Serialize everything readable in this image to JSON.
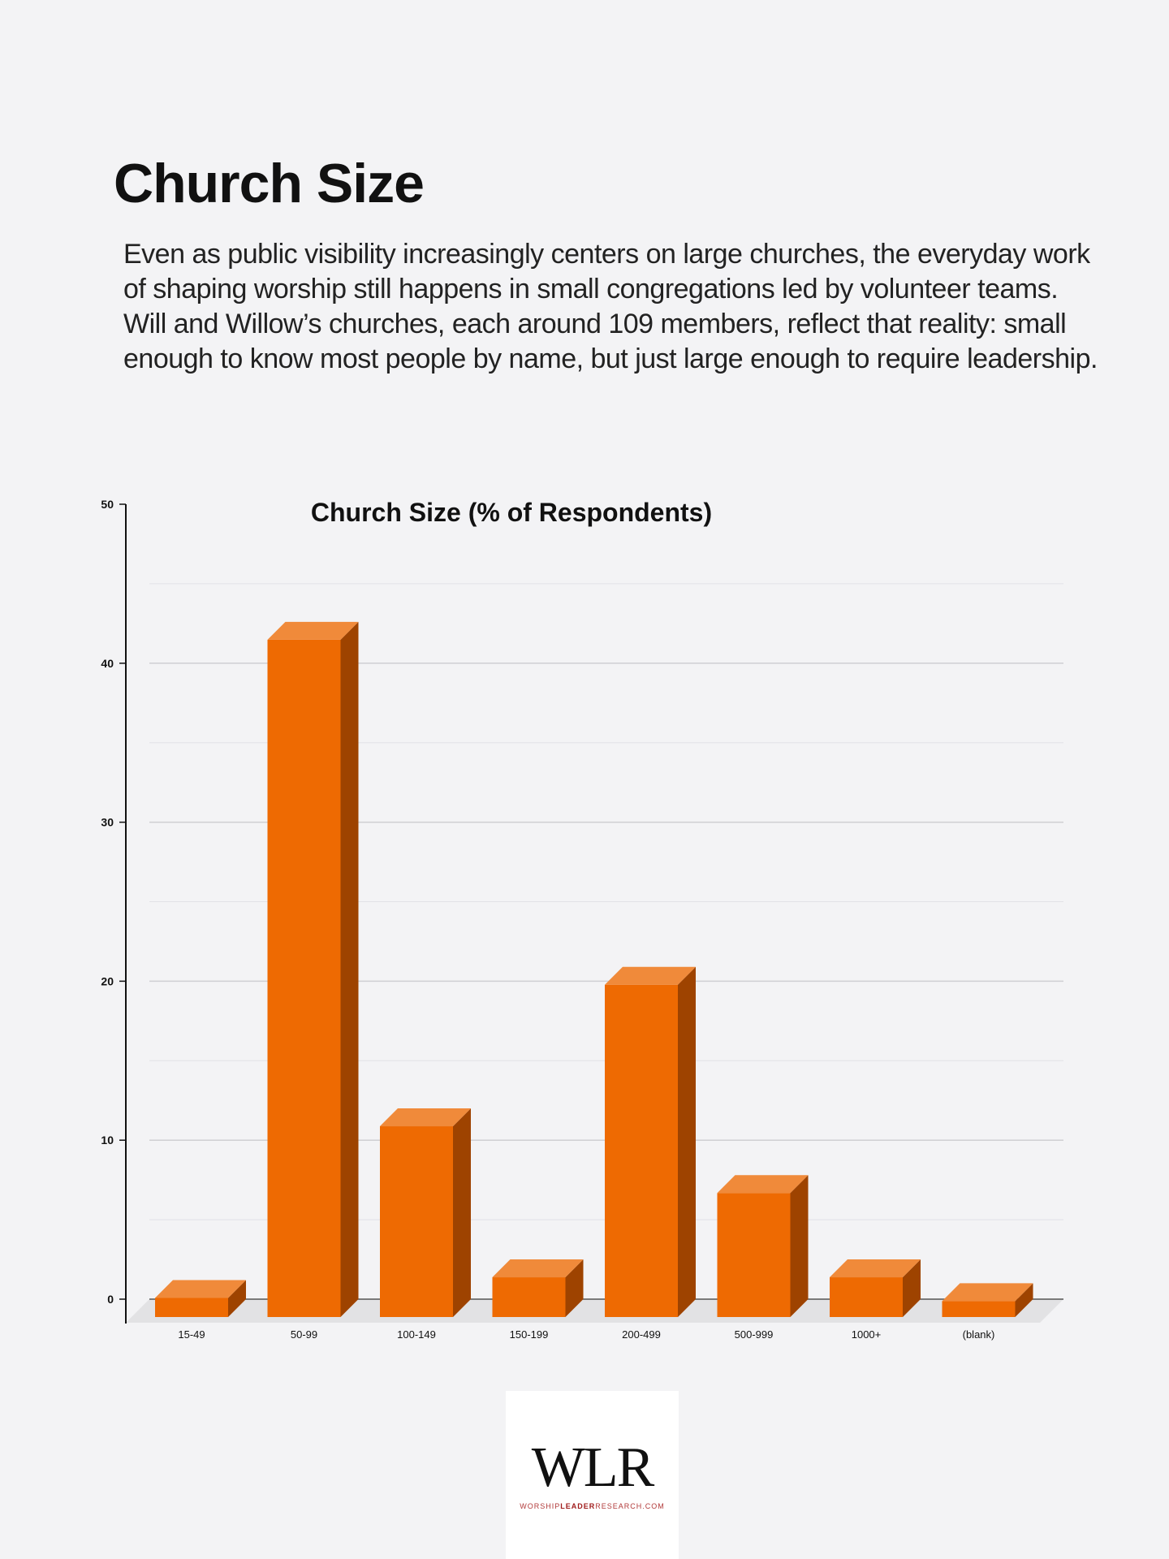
{
  "header": {
    "title": "Church Size",
    "intro": "Even as public visibility increasingly centers on large churches, the everyday work of shaping worship still happens in small congregations led by volunteer teams. Will and Willow’s churches, each around 109 members, reflect that reality: small enough to know most people by name, but just large enough to require leadership."
  },
  "chart_data": {
    "type": "bar",
    "title": "Church Size (% of Respondents)",
    "xlabel": "",
    "ylabel": "",
    "categories": [
      "15-49",
      "50-99",
      "100-149",
      "150-199",
      "200-499",
      "500-999",
      "1000+",
      "(blank)"
    ],
    "values": [
      1.2,
      42.6,
      12.0,
      2.5,
      20.9,
      7.8,
      2.5,
      1.0
    ],
    "ylim": [
      0,
      50
    ],
    "yticks": [
      0,
      10,
      20,
      30,
      40,
      50
    ],
    "grid": true,
    "style": "3d",
    "colors": {
      "front": "#ee6a02",
      "top": "#f08a3a",
      "side": "#9e4300",
      "floor": "#e2e2e4"
    }
  },
  "logo": {
    "mark": "WLR",
    "url_pre": "WORSHIP",
    "url_bold": "LEADER",
    "url_post": "RESEARCH.COM"
  }
}
